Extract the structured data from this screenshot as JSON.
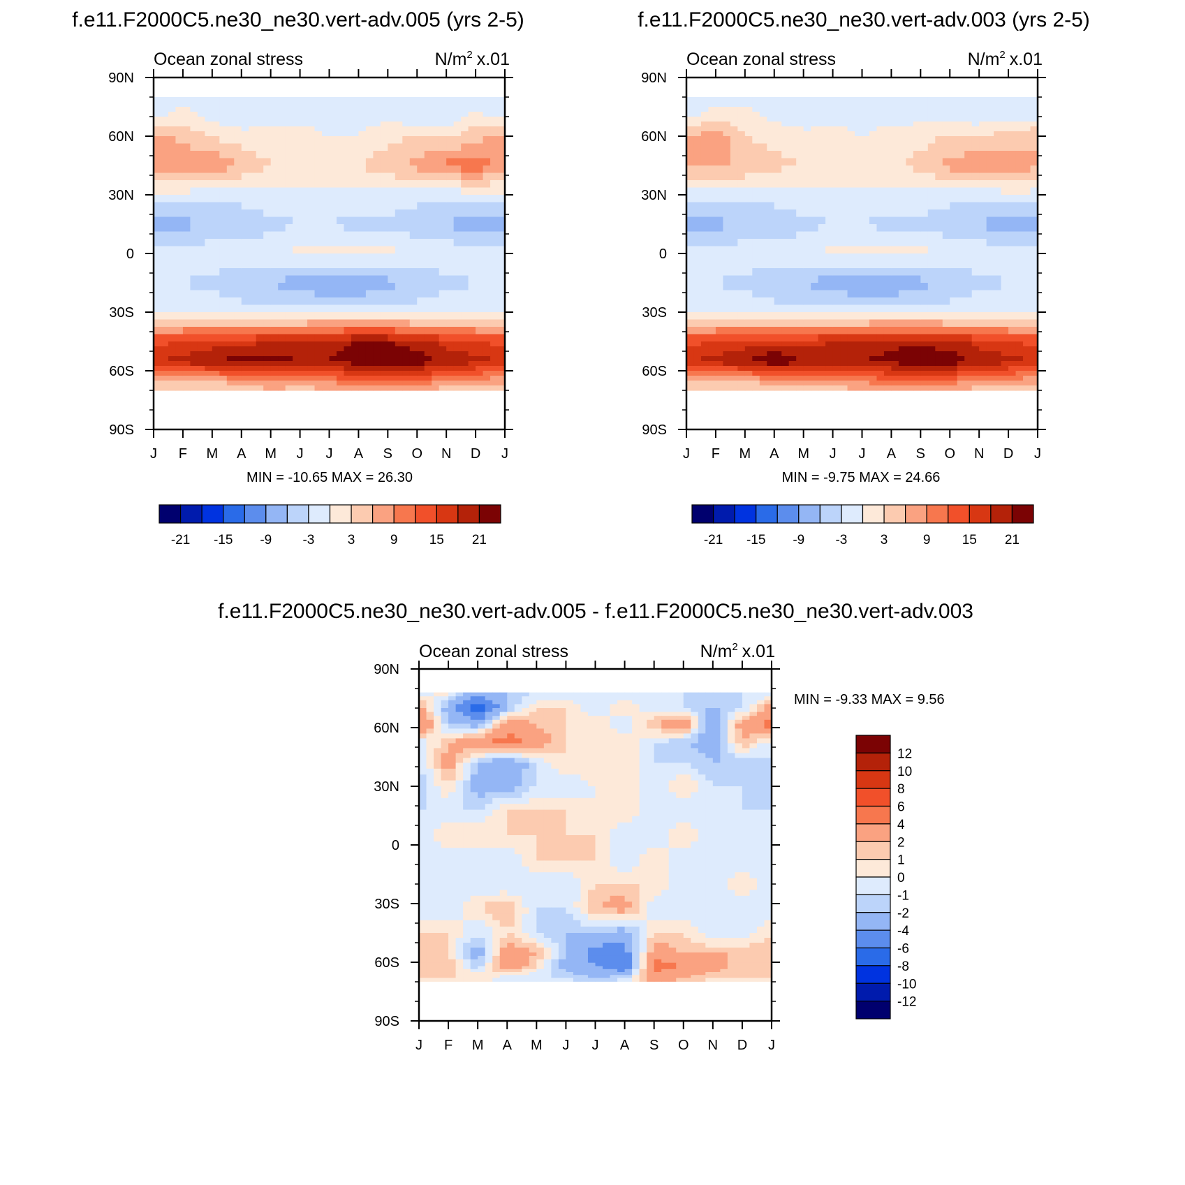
{
  "figure": {
    "panels": [
      {
        "title": "f.e11.F2000C5.ne30_ne30.vert-adv.005 (yrs 2-5)",
        "left_label": "Ocean zonal stress",
        "unit_base": "N/m",
        "unit_exp": "2",
        "unit_scale": "x.01",
        "stats": "MIN = -10.65 MAX =  26.30"
      },
      {
        "title": "f.e11.F2000C5.ne30_ne30.vert-adv.003 (yrs 2-5)",
        "left_label": "Ocean zonal stress",
        "unit_base": "N/m",
        "unit_exp": "2",
        "unit_scale": "x.01",
        "stats": "MIN =  -9.75 MAX =  24.66"
      },
      {
        "title": "f.e11.F2000C5.ne30_ne30.vert-adv.005 - f.e11.F2000C5.ne30_ne30.vert-adv.003",
        "left_label": "Ocean zonal stress",
        "unit_base": "N/m",
        "unit_exp": "2",
        "unit_scale": "x.01",
        "stats": "MIN =  -9.33 MAX =   9.56"
      }
    ]
  },
  "chart_data": [
    {
      "type": "heatmap",
      "title": "f.e11.F2000C5.ne30_ne30.vert-adv.005 (yrs 2-5)",
      "x": [
        "J",
        "F",
        "M",
        "A",
        "M",
        "J",
        "J",
        "A",
        "S",
        "O",
        "N",
        "D",
        "J"
      ],
      "y_ticks": [
        "90N",
        "60N",
        "30N",
        "0",
        "30S",
        "60S",
        "90S"
      ],
      "ylim": [
        -90,
        90
      ],
      "lat": [
        80,
        70,
        60,
        45,
        30,
        15,
        0,
        -15,
        -30,
        -45,
        -55,
        -65,
        -75
      ],
      "z": [
        [
          -2,
          -1,
          -2,
          -1,
          -1,
          -1,
          -1,
          -1,
          -1,
          -2,
          -3,
          -2,
          -2
        ],
        [
          -1,
          1,
          -1,
          -2,
          -1,
          -1,
          -1,
          -1,
          -1,
          -2,
          -2,
          1,
          -1
        ],
        [
          7,
          5,
          3,
          1,
          1,
          1,
          0,
          0,
          2,
          3,
          2,
          5,
          7
        ],
        [
          8,
          8,
          9,
          6,
          3,
          2,
          3,
          3,
          5,
          7,
          10,
          11,
          8
        ],
        [
          -1,
          -1,
          -2,
          -2,
          -1,
          -1,
          -1,
          -1,
          -1,
          -2,
          -2,
          -1,
          -1
        ],
        [
          -9,
          -7,
          -6,
          -5,
          -4,
          -3,
          -3,
          -4,
          -4,
          -5,
          -6,
          -8,
          -9
        ],
        [
          -1,
          -1,
          -1,
          -1,
          -1,
          1,
          1,
          1,
          1,
          -1,
          -1,
          -1,
          -1
        ],
        [
          -3,
          -3,
          -4,
          -5,
          -6,
          -8,
          -9,
          -9,
          -7,
          -5,
          -4,
          -3,
          -3
        ],
        [
          -1,
          -1,
          -1,
          -2,
          -2,
          -2,
          -2,
          -2,
          -2,
          -2,
          -1,
          -1,
          -1
        ],
        [
          14,
          15,
          16,
          17,
          18,
          19,
          20,
          21,
          21,
          19,
          17,
          15,
          14
        ],
        [
          18,
          19,
          21,
          22,
          22,
          21,
          21,
          23,
          26,
          23,
          20,
          19,
          18
        ],
        [
          7,
          6,
          6,
          8,
          10,
          9,
          10,
          12,
          13,
          12,
          9,
          8,
          7
        ],
        [
          -1,
          -1,
          1,
          0,
          0,
          0,
          0,
          0,
          0,
          0,
          0,
          -1,
          -1
        ]
      ],
      "land_mask_below_lat": -68,
      "colorbar": {
        "levels": [
          "-21",
          "-15",
          "-9",
          "-3",
          "3",
          "9",
          "15",
          "21"
        ],
        "colors": [
          "#00006e",
          "#001bad",
          "#0033e0",
          "#2a6be8",
          "#5c8ded",
          "#94b6f5",
          "#bcd4fa",
          "#deebfd",
          "#fde9d9",
          "#fccbb0",
          "#faa281",
          "#f7774e",
          "#f1502a",
          "#d83713",
          "#b42209",
          "#7b0304"
        ]
      }
    },
    {
      "type": "heatmap",
      "title": "f.e11.F2000C5.ne30_ne30.vert-adv.003 (yrs 2-5)",
      "x": [
        "J",
        "F",
        "M",
        "A",
        "M",
        "J",
        "J",
        "A",
        "S",
        "O",
        "N",
        "D",
        "J"
      ],
      "y_ticks": [
        "90N",
        "60N",
        "30N",
        "0",
        "30S",
        "60S",
        "90S"
      ],
      "ylim": [
        -90,
        90
      ],
      "lat": [
        80,
        70,
        60,
        45,
        30,
        15,
        0,
        -15,
        -30,
        -45,
        -55,
        -65,
        -75
      ],
      "z": [
        [
          -2,
          -2,
          -1,
          -1,
          -1,
          -1,
          -1,
          -1,
          -1,
          -2,
          -2,
          -2,
          -2
        ],
        [
          -1,
          2,
          1,
          -1,
          -2,
          -1,
          -1,
          -1,
          -1,
          -1,
          -2,
          -1,
          -1
        ],
        [
          6,
          8,
          3,
          2,
          1,
          1,
          0,
          1,
          2,
          3,
          3,
          4,
          6
        ],
        [
          6,
          6,
          6,
          4,
          3,
          2,
          2,
          2,
          4,
          7,
          9,
          9,
          6
        ],
        [
          -1,
          -1,
          -2,
          -2,
          -1,
          -1,
          -1,
          -1,
          -1,
          -2,
          -2,
          -1,
          -1
        ],
        [
          -9,
          -7,
          -6,
          -5,
          -4,
          -3,
          -3,
          -4,
          -4,
          -5,
          -6,
          -8,
          -9
        ],
        [
          -1,
          -1,
          -1,
          -1,
          -1,
          1,
          1,
          1,
          1,
          -1,
          -1,
          -1,
          -1
        ],
        [
          -3,
          -3,
          -4,
          -5,
          -6,
          -8,
          -9,
          -9,
          -7,
          -5,
          -4,
          -3,
          -3
        ],
        [
          -1,
          -1,
          -1,
          -2,
          -2,
          -2,
          -2,
          -2,
          -2,
          -2,
          -1,
          -1,
          -1
        ],
        [
          14,
          15,
          16,
          17,
          17,
          18,
          19,
          20,
          20,
          19,
          17,
          15,
          14
        ],
        [
          18,
          19,
          21,
          24,
          21,
          20,
          21,
          22,
          24,
          23,
          20,
          19,
          18
        ],
        [
          7,
          6,
          6,
          8,
          9,
          9,
          10,
          11,
          12,
          11,
          9,
          8,
          7
        ],
        [
          -1,
          -1,
          1,
          0,
          0,
          0,
          0,
          0,
          0,
          0,
          0,
          -1,
          -1
        ]
      ],
      "land_mask_below_lat": -68,
      "colorbar": {
        "levels": [
          "-21",
          "-15",
          "-9",
          "-3",
          "3",
          "9",
          "15",
          "21"
        ],
        "colors": [
          "#00006e",
          "#001bad",
          "#0033e0",
          "#2a6be8",
          "#5c8ded",
          "#94b6f5",
          "#bcd4fa",
          "#deebfd",
          "#fde9d9",
          "#fccbb0",
          "#faa281",
          "#f7774e",
          "#f1502a",
          "#d83713",
          "#b42209",
          "#7b0304"
        ]
      }
    },
    {
      "type": "heatmap",
      "title": "f.e11.F2000C5.ne30_ne30.vert-adv.005 - f.e11.F2000C5.ne30_ne30.vert-adv.003",
      "x": [
        "J",
        "F",
        "M",
        "A",
        "M",
        "J",
        "J",
        "A",
        "S",
        "O",
        "N",
        "D",
        "J"
      ],
      "y_ticks": [
        "90N",
        "60N",
        "30N",
        "0",
        "30S",
        "60S",
        "90S"
      ],
      "ylim": [
        -90,
        90
      ],
      "lat": [
        78,
        70,
        62,
        52,
        42,
        30,
        18,
        5,
        -8,
        -20,
        -32,
        -45,
        -55,
        -62,
        -68,
        -75
      ],
      "z": [
        [
          -1,
          1,
          -3,
          -2,
          -1,
          -1,
          0,
          -1,
          -1,
          -1,
          -1,
          -1,
          -1
        ],
        [
          3,
          -3,
          -8,
          -2,
          1,
          1,
          -1,
          1,
          -1,
          -1,
          -2,
          -1,
          3
        ],
        [
          5,
          -2,
          -3,
          3,
          2,
          1,
          1,
          -1,
          2,
          4,
          -4,
          3,
          5
        ],
        [
          -1,
          2,
          4,
          5,
          3,
          1,
          0,
          1,
          -1,
          -2,
          -3,
          2,
          -1
        ],
        [
          -1,
          3,
          -2,
          -4,
          -1,
          1,
          1,
          1,
          -1,
          -1,
          -2,
          -2,
          -1
        ],
        [
          -2,
          1,
          -3,
          -3,
          -1,
          -1,
          0,
          1,
          -1,
          1,
          -1,
          -1,
          -2
        ],
        [
          -1,
          -1,
          -1,
          1,
          1,
          1,
          0,
          1,
          -1,
          -1,
          -1,
          -1,
          -1
        ],
        [
          -1,
          1,
          1,
          1,
          1,
          1,
          1,
          -1,
          -1,
          1,
          -1,
          -1,
          -1
        ],
        [
          -1,
          -1,
          -1,
          -1,
          1,
          1,
          1,
          -1,
          1,
          -1,
          -1,
          -1,
          -1
        ],
        [
          -1,
          -1,
          -1,
          -1,
          -1,
          -1,
          1,
          1,
          1,
          -1,
          -1,
          1,
          -1
        ],
        [
          -1,
          -1,
          1,
          2,
          -1,
          -1,
          2,
          3,
          -1,
          -1,
          -1,
          -1,
          -1
        ],
        [
          1,
          1,
          -1,
          1,
          -1,
          -2,
          -2,
          -3,
          1,
          1,
          -1,
          -1,
          1
        ],
        [
          2,
          1,
          -3,
          3,
          2,
          -2,
          -5,
          -5,
          3,
          2,
          2,
          2,
          2
        ],
        [
          1,
          2,
          -2,
          4,
          1,
          -3,
          -4,
          -6,
          5,
          4,
          3,
          1,
          1
        ],
        [
          1,
          1,
          1,
          -1,
          -1,
          -1,
          -2,
          -1,
          3,
          2,
          1,
          1,
          1
        ],
        [
          -1,
          -1,
          0,
          0,
          0,
          0,
          0,
          0,
          0,
          0,
          0,
          -1,
          -1
        ]
      ],
      "land_mask_below_lat": -68,
      "colorbar": {
        "levels": [
          "12",
          "10",
          "8",
          "6",
          "4",
          "2",
          "1",
          "0",
          "-1",
          "-2",
          "-4",
          "-6",
          "-8",
          "-10",
          "-12"
        ],
        "colors": [
          "#7b0304",
          "#b42209",
          "#d83713",
          "#f1502a",
          "#f7774e",
          "#faa281",
          "#fccbb0",
          "#fde9d9",
          "#deebfd",
          "#bcd4fa",
          "#94b6f5",
          "#5c8ded",
          "#2a6be8",
          "#0033e0",
          "#001bad",
          "#00006e"
        ]
      }
    }
  ]
}
